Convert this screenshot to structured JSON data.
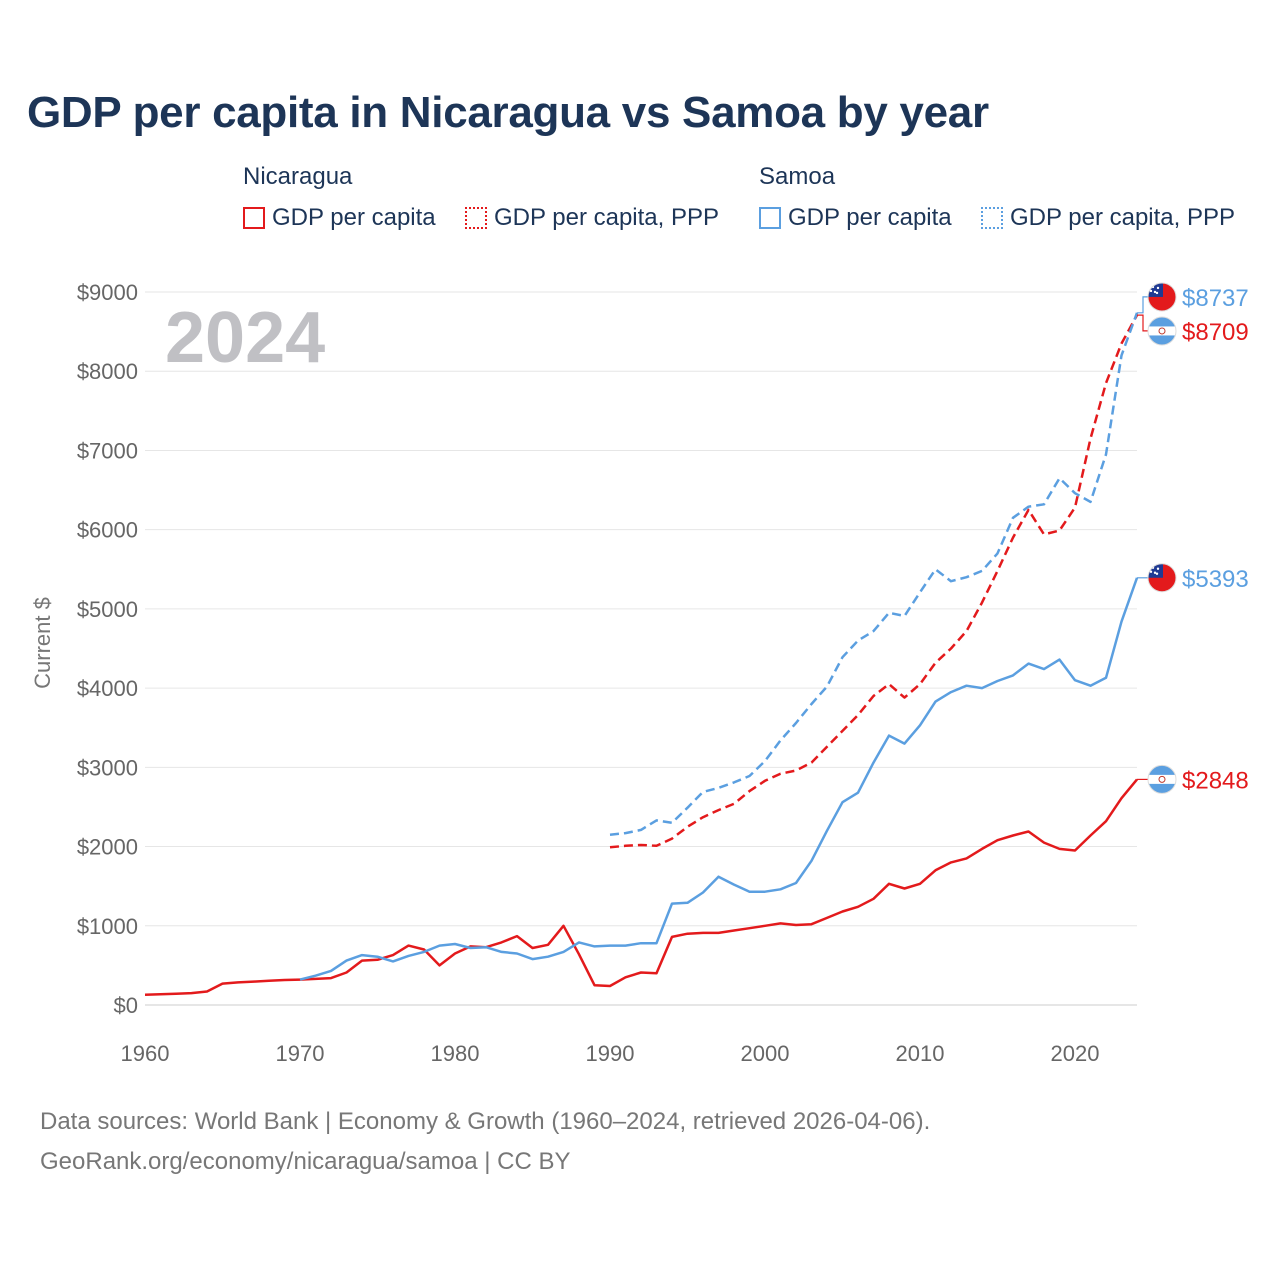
{
  "title": "GDP per capita in Nicaragua vs Samoa by year",
  "legend": {
    "groups": [
      {
        "name": "Nicaragua",
        "color": "#e31a1c",
        "items": [
          {
            "label": "GDP per capita",
            "style": "solid"
          },
          {
            "label": "GDP per capita, PPP",
            "style": "dotted"
          }
        ]
      },
      {
        "name": "Samoa",
        "color": "#5b9fe0",
        "items": [
          {
            "label": "GDP per capita",
            "style": "solid"
          },
          {
            "label": "GDP per capita, PPP",
            "style": "dotted"
          }
        ]
      }
    ]
  },
  "year_label": "2024",
  "chart_data": {
    "type": "line",
    "title": "GDP per capita in Nicaragua vs Samoa by year",
    "xlabel": "",
    "ylabel": "Current $",
    "xlim": [
      1960,
      2024
    ],
    "ylim": [
      0,
      9000
    ],
    "grid": true,
    "x_ticks": [
      1960,
      1970,
      1980,
      1990,
      2000,
      2010,
      2020
    ],
    "x_tick_labels": [
      "1960",
      "1970",
      "1980",
      "1990",
      "2000",
      "2010",
      "2020"
    ],
    "y_ticks": [
      0,
      1000,
      2000,
      3000,
      4000,
      5000,
      6000,
      7000,
      8000,
      9000
    ],
    "y_tick_labels": [
      "$0",
      "$1000",
      "$2000",
      "$3000",
      "$4000",
      "$5000",
      "$6000",
      "$7000",
      "$8000",
      "$9000"
    ],
    "series": [
      {
        "name": "Nicaragua GDP per capita",
        "country": "Nicaragua",
        "color": "#e31a1c",
        "dash": "solid",
        "start_year": 1960,
        "end_label": "$2848",
        "values": [
          130,
          135,
          142,
          150,
          170,
          270,
          285,
          295,
          305,
          315,
          320,
          330,
          340,
          410,
          560,
          570,
          630,
          750,
          700,
          500,
          650,
          740,
          730,
          790,
          870,
          720,
          760,
          1000,
          640,
          250,
          240,
          350,
          410,
          400,
          860,
          900,
          910,
          910,
          940,
          970,
          1000,
          1030,
          1010,
          1020,
          1100,
          1180,
          1240,
          1340,
          1530,
          1470,
          1530,
          1700,
          1800,
          1850,
          1970,
          2080,
          2140,
          2190,
          2050,
          1970,
          1950,
          2140,
          2320,
          2610,
          2848
        ]
      },
      {
        "name": "Nicaragua GDP per capita, PPP",
        "country": "Nicaragua",
        "color": "#e31a1c",
        "dash": "dashed",
        "start_year": 1990,
        "end_label": "$8709",
        "values": [
          1990,
          2010,
          2020,
          2010,
          2100,
          2250,
          2370,
          2460,
          2540,
          2700,
          2830,
          2920,
          2960,
          3060,
          3260,
          3460,
          3660,
          3900,
          4050,
          3880,
          4050,
          4320,
          4500,
          4720,
          5080,
          5480,
          5900,
          6250,
          5940,
          5990,
          6280,
          7150,
          7850,
          8350,
          8709
        ]
      },
      {
        "name": "Samoa GDP per capita",
        "country": "Samoa",
        "color": "#5b9fe0",
        "dash": "solid",
        "start_year": 1970,
        "end_label": "$5393",
        "values": [
          320,
          370,
          430,
          560,
          630,
          610,
          550,
          620,
          670,
          750,
          770,
          720,
          730,
          670,
          650,
          580,
          610,
          670,
          790,
          740,
          750,
          750,
          780,
          780,
          1280,
          1290,
          1420,
          1620,
          1520,
          1430,
          1430,
          1460,
          1540,
          1820,
          2200,
          2560,
          2680,
          3060,
          3400,
          3300,
          3530,
          3830,
          3950,
          4030,
          4000,
          4090,
          4160,
          4310,
          4240,
          4360,
          4100,
          4030,
          4130,
          4840,
          5393
        ]
      },
      {
        "name": "Samoa GDP per capita, PPP",
        "country": "Samoa",
        "color": "#5b9fe0",
        "dash": "dashed",
        "start_year": 1990,
        "end_label": "$8737",
        "values": [
          2150,
          2170,
          2210,
          2330,
          2300,
          2490,
          2690,
          2740,
          2810,
          2890,
          3080,
          3340,
          3560,
          3800,
          4020,
          4390,
          4600,
          4720,
          4950,
          4910,
          5210,
          5500,
          5350,
          5400,
          5480,
          5700,
          6150,
          6290,
          6320,
          6650,
          6460,
          6350,
          6950,
          8200,
          8737
        ]
      }
    ]
  },
  "footer": {
    "line1": "Data sources: World Bank | Economy & Growth (1960–2024, retrieved 2026-04-06).",
    "line2": "GeoRank.org/economy/nicaragua/samoa | CC BY"
  }
}
